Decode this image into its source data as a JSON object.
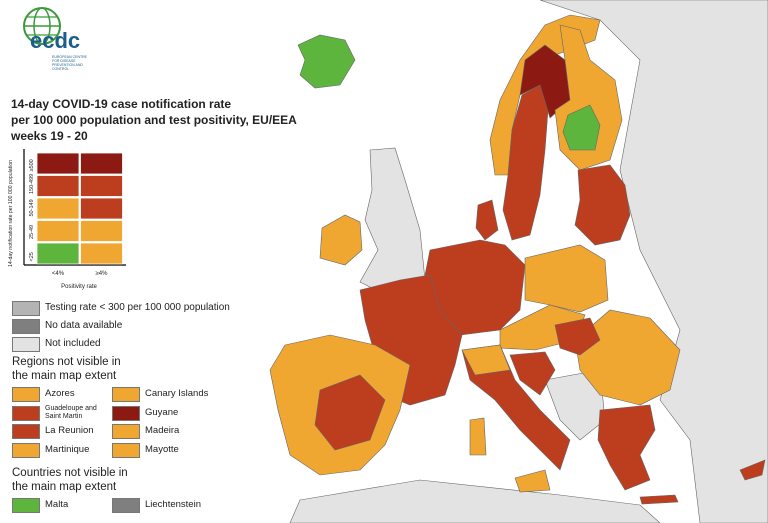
{
  "logo": {
    "name": "ecdc",
    "subtitle": "EUROPEAN CENTRE FOR DISEASE PREVENTION AND CONTROL"
  },
  "title": [
    "14-day COVID-19 case notification rate",
    "per 100 000 population and test positivity, EU/EEA",
    "weeks 19 - 20"
  ],
  "matrix": {
    "y_label": "14-day notification rate per 100 000 population",
    "rows": [
      {
        "label": "≥500",
        "colors": [
          "#8c1a12",
          "#8c1a12"
        ]
      },
      {
        "label": "150-499",
        "colors": [
          "#bd3d1f",
          "#bd3d1f"
        ]
      },
      {
        "label": "50-149",
        "colors": [
          "#f0a732",
          "#bd3d1f"
        ]
      },
      {
        "label": "25-49",
        "colors": [
          "#f0a732",
          "#f0a732"
        ]
      },
      {
        "label": "<25",
        "colors": [
          "#5db53d",
          "#f0a732"
        ]
      }
    ],
    "columns": [
      "<4%",
      "≥4%"
    ],
    "x_label": "Positivity rate"
  },
  "legend": [
    {
      "label": "Testing rate < 300 per 100 000 population",
      "color": "#b4b4b4"
    },
    {
      "label": "No data available",
      "color": "#7f7f7f"
    },
    {
      "label": "Not included",
      "color": "#e3e3e3"
    }
  ],
  "regions": {
    "heading": "Regions not visible in the main map extent",
    "items": [
      {
        "label": "Azores",
        "color": "#f0a732"
      },
      {
        "label": "Canary Islands",
        "color": "#f0a732"
      },
      {
        "label": "Guadeloupe and Saint Martin",
        "color": "#bd3d1f"
      },
      {
        "label": "Guyane",
        "color": "#8c1a12"
      },
      {
        "label": "La Reunion",
        "color": "#bd3d1f"
      },
      {
        "label": "Madeira",
        "color": "#f0a732"
      },
      {
        "label": "Martinique",
        "color": "#f0a732"
      },
      {
        "label": "Mayotte",
        "color": "#f0a732"
      }
    ]
  },
  "countries": {
    "heading": "Countries not visible in the main map extent",
    "items": [
      {
        "label": "Malta",
        "color": "#5db53d"
      },
      {
        "label": "Liechtenstein",
        "color": "#7f7f7f"
      }
    ]
  }
}
